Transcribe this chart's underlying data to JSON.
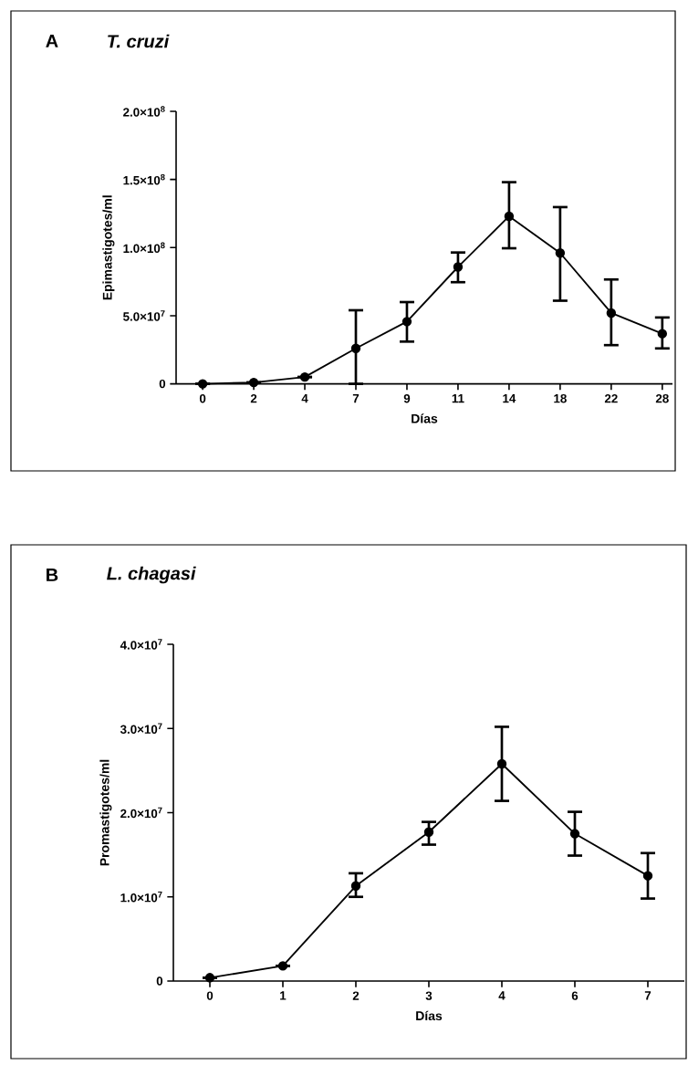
{
  "chart_data": [
    {
      "type": "line",
      "title": "T. cruzi",
      "annotations": [
        "A"
      ],
      "xlabel": "Días",
      "ylabel": "Epimastigotes/ml",
      "categories": [
        "0",
        "2",
        "4",
        "7",
        "9",
        "11",
        "14",
        "18",
        "22",
        "28"
      ],
      "values": [
        0,
        1000000,
        5000000,
        26000000,
        45700000,
        85800000,
        123000000,
        96000000,
        52000000,
        36800000
      ],
      "errors": [
        null,
        null,
        null,
        [
          0,
          54000000
        ],
        [
          31000000,
          60000000
        ],
        [
          74600000,
          96400000
        ],
        [
          99500000,
          148000000
        ],
        [
          61000000,
          129700000
        ],
        [
          28400000,
          76600000
        ],
        [
          26000000,
          48700000
        ]
      ],
      "color": "#000000",
      "marker": "circle",
      "line_style": "solid",
      "ylim": [
        0,
        200000000
      ],
      "yticks": [
        0,
        {
          "value": 50000000,
          "label": "5.0×10$^{7}$"
        },
        {
          "value": 100000000,
          "label": "1.0×10$^{8}$"
        },
        {
          "value": 150000000,
          "label": "1.5×10$^{8}$"
        },
        {
          "value": 200000000,
          "label": "2.0×10$^{8}$"
        }
      ]
    },
    {
      "type": "line",
      "title": "L. chagasi",
      "annotations": [
        "B"
      ],
      "xlabel": "Días",
      "ylabel": "Promastigotes/ml",
      "categories": [
        "0",
        "1",
        "2",
        "3",
        "4",
        "6",
        "7"
      ],
      "values": [
        400000,
        1800000,
        11300000,
        17700000,
        25800000,
        17500000,
        12500000
      ],
      "errors": [
        null,
        null,
        [
          10000000,
          12800000
        ],
        [
          16200000,
          18900000
        ],
        [
          21400000,
          30200000
        ],
        [
          14900000,
          20100000
        ],
        [
          9800000,
          15200000
        ]
      ],
      "color": "#000000",
      "marker": "circle",
      "line_style": "solid",
      "ylim": [
        0,
        40000000
      ],
      "yticks": [
        0,
        {
          "value": 10000000,
          "label": "1.0×10$^{7}$"
        },
        {
          "value": 20000000,
          "label": "2.0×10$^{7}$"
        },
        {
          "value": 30000000,
          "label": "3.0×10$^{7}$"
        },
        {
          "value": 40000000,
          "label": "4.0×10$^{7}$"
        }
      ]
    }
  ]
}
